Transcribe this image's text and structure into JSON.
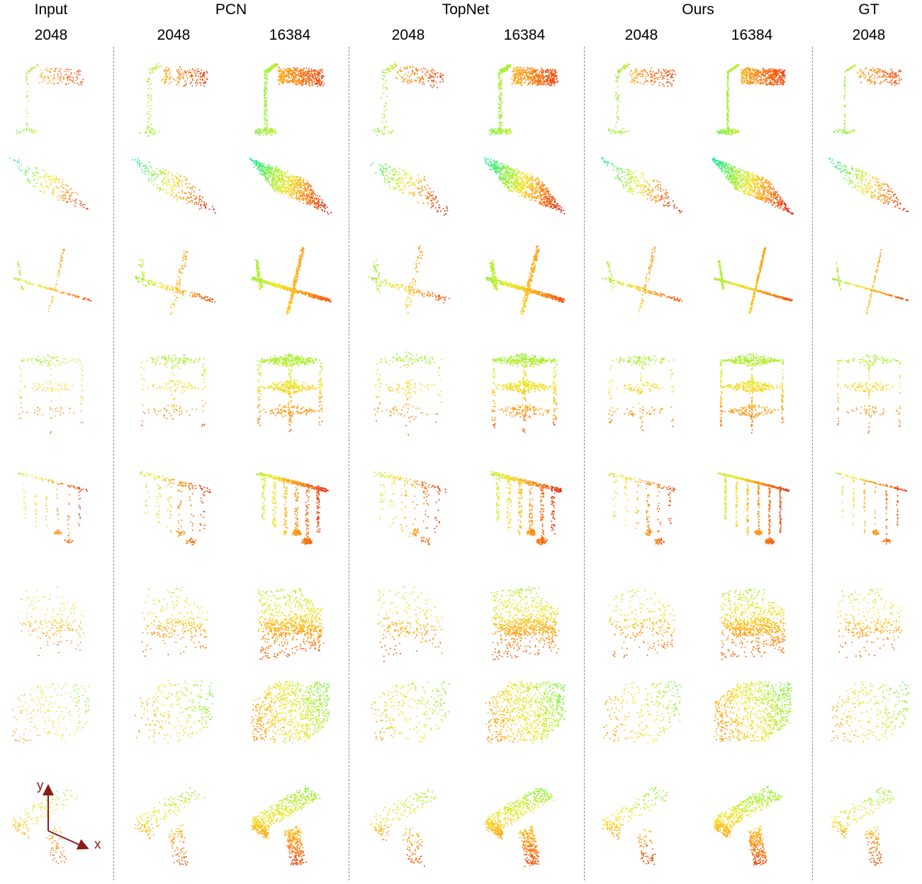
{
  "figure": {
    "group_headers": [
      "Input",
      "PCN",
      "TopNet",
      "Ours",
      "GT"
    ],
    "column_headers": [
      "2048",
      "2048",
      "16384",
      "2048",
      "16384",
      "2048",
      "16384",
      "2048"
    ],
    "rows": [
      "lamp",
      "car",
      "airplane",
      "cabinet",
      "lamp-hanging",
      "chair",
      "sofa",
      "table"
    ],
    "axis_labels": {
      "y": "y",
      "x": "x"
    },
    "colormap": [
      "#00e0ff",
      "#29f07a",
      "#9af03a",
      "#f3ea2a",
      "#ff9a18",
      "#f04a12",
      "#c8101a"
    ],
    "axis_color": "#8b1a1a"
  }
}
